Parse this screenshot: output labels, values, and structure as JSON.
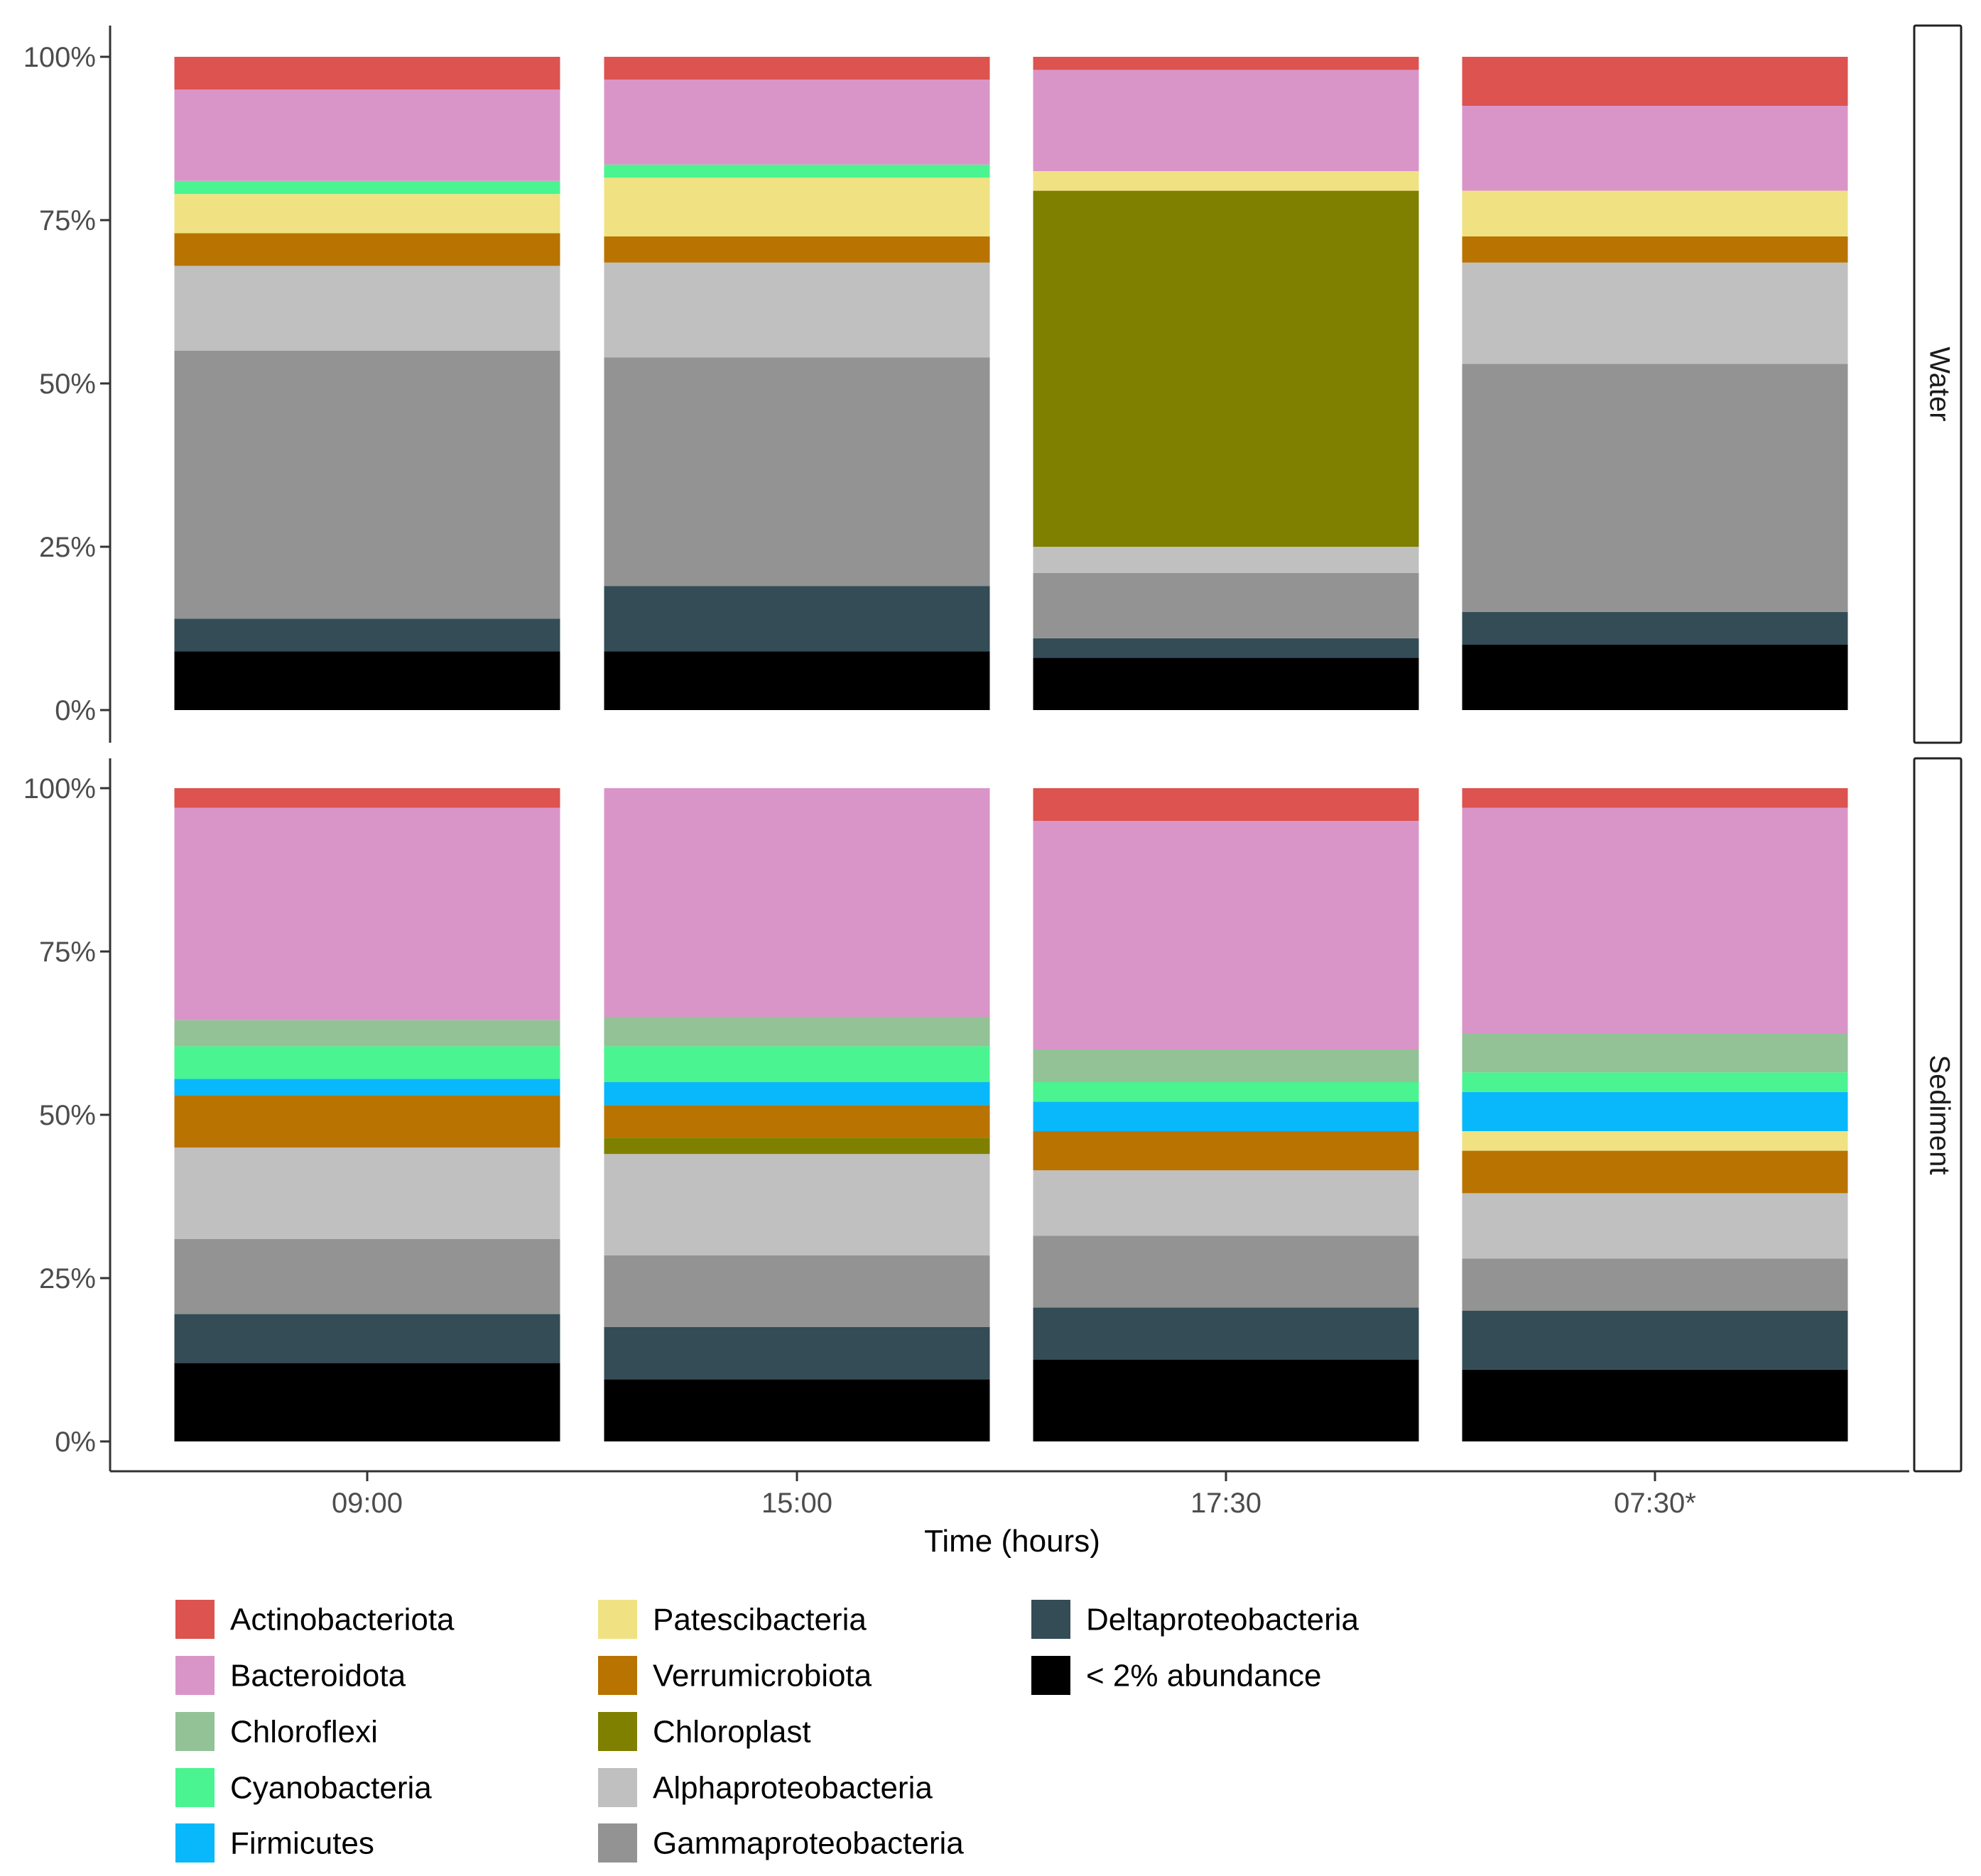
{
  "chart_data": {
    "type": "bar",
    "stacked": true,
    "xlabel": "Time (hours)",
    "ylabel": "",
    "ylim": [
      0,
      100
    ],
    "y_ticks": [
      "0%",
      "25%",
      "50%",
      "75%",
      "100%"
    ],
    "categories": [
      "09:00",
      "15:00",
      "17:30",
      "07:30*"
    ],
    "legend": [
      {
        "name": "Actinobacteriota",
        "color": "#DC534F"
      },
      {
        "name": "Bacteroidota",
        "color": "#DA95C8"
      },
      {
        "name": "Chloroflexi",
        "color": "#93C297"
      },
      {
        "name": "Cyanobacteria",
        "color": "#4AF490"
      },
      {
        "name": "Firmicutes",
        "color": "#08B8FA"
      },
      {
        "name": "Patescibacteria",
        "color": "#F0E282"
      },
      {
        "name": "Verrumicrobiota",
        "color": "#B87300"
      },
      {
        "name": "Chloroplast",
        "color": "#7F7F00"
      },
      {
        "name": "Alphaproteobacteria",
        "color": "#C0C0C0"
      },
      {
        "name": "Gammaproteobacteria",
        "color": "#939393"
      },
      {
        "name": "Deltaproteobacteria",
        "color": "#334C56"
      },
      {
        "name": "< 2% abundance",
        "color": "#000000"
      }
    ],
    "panels": [
      {
        "label": "Water",
        "series": [
          {
            "name": "< 2% abundance",
            "values": [
              9,
              9,
              8,
              10
            ]
          },
          {
            "name": "Deltaproteobacteria",
            "values": [
              5,
              10,
              3,
              5
            ]
          },
          {
            "name": "Gammaproteobacteria",
            "values": [
              41,
              35,
              10,
              38
            ]
          },
          {
            "name": "Alphaproteobacteria",
            "values": [
              13,
              14.5,
              4,
              15.5
            ]
          },
          {
            "name": "Chloroplast",
            "values": [
              0,
              0,
              54.5,
              0
            ]
          },
          {
            "name": "Verrumicrobiota",
            "values": [
              5,
              4,
              0,
              4
            ]
          },
          {
            "name": "Patescibacteria",
            "values": [
              6,
              9,
              3,
              7
            ]
          },
          {
            "name": "Cyanobacteria",
            "values": [
              2,
              2,
              0,
              0
            ]
          },
          {
            "name": "Chloroflexi",
            "values": [
              0,
              0,
              0,
              0
            ]
          },
          {
            "name": "Firmicutes",
            "values": [
              0,
              0,
              0,
              0
            ]
          },
          {
            "name": "Bacteroidota",
            "values": [
              14,
              13,
              15.5,
              13
            ]
          },
          {
            "name": "Actinobacteriota",
            "values": [
              5,
              3.5,
              2,
              7.5
            ]
          }
        ]
      },
      {
        "label": "Sediment",
        "series": [
          {
            "name": "< 2% abundance",
            "values": [
              12,
              9.5,
              12.5,
              11
            ]
          },
          {
            "name": "Deltaproteobacteria",
            "values": [
              7.5,
              8,
              8,
              9
            ]
          },
          {
            "name": "Gammaproteobacteria",
            "values": [
              11.5,
              11,
              11,
              8
            ]
          },
          {
            "name": "Alphaproteobacteria",
            "values": [
              14,
              15.5,
              10,
              10
            ]
          },
          {
            "name": "Chloroplast",
            "values": [
              0,
              2.5,
              0,
              0
            ]
          },
          {
            "name": "Verrumicrobiota",
            "values": [
              8,
              5,
              6,
              6.5
            ]
          },
          {
            "name": "Patescibacteria",
            "values": [
              0,
              0,
              0,
              3
            ]
          },
          {
            "name": "Firmicutes",
            "values": [
              2.5,
              3.5,
              4.5,
              6
            ]
          },
          {
            "name": "Cyanobacteria",
            "values": [
              5,
              5.5,
              3,
              3
            ]
          },
          {
            "name": "Chloroflexi",
            "values": [
              4,
              4.5,
              5,
              6
            ]
          },
          {
            "name": "Bacteroidota",
            "values": [
              32.5,
              35,
              35,
              34.5
            ]
          },
          {
            "name": "Actinobacteriota",
            "values": [
              3,
              0,
              5,
              3
            ]
          }
        ]
      }
    ]
  }
}
